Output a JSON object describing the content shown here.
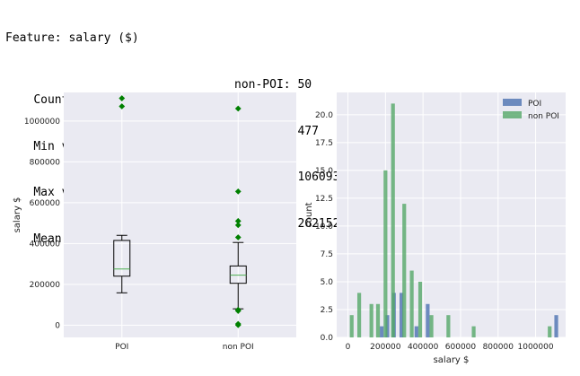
{
  "header": {
    "title": "Feature: salary ($)",
    "rows": [
      {
        "label": "Count of NaN - POI: 1",
        "other": "non-POI: 50"
      },
      {
        "label": "Min value    - POI: 158403",
        "other": "non-POI: 477"
      },
      {
        "label": "Max value    - POI: 1111258",
        "other": "non-POI: 1060932"
      },
      {
        "label": "Mean value   - POI: 383445",
        "other": "non-POI: 262152"
      }
    ]
  },
  "colors": {
    "poi": "#4c72b0",
    "non_poi": "#55a868",
    "plot_bg": "#eaeaf2",
    "grid": "#ffffff",
    "flier": "#008000",
    "median": "#4caf50"
  },
  "chart_data": [
    {
      "type": "box",
      "title": "",
      "xlabel": "",
      "ylabel": "salary $",
      "ylim": [
        -60000,
        1140000
      ],
      "yticks": [
        0,
        200000,
        400000,
        600000,
        800000,
        1000000
      ],
      "ytick_labels": [
        "0",
        "200000",
        "400000",
        "600000",
        "800000",
        "1000000"
      ],
      "categories": [
        "POI",
        "non POI"
      ],
      "boxes": [
        {
          "name": "POI",
          "whisker_low": 158403,
          "q1": 240000,
          "median": 275000,
          "q3": 415000,
          "whisker_high": 440000,
          "fliers": [
            1072000,
            1111258
          ]
        },
        {
          "name": "non POI",
          "whisker_low": 80000,
          "q1": 205000,
          "median": 245000,
          "q3": 290000,
          "whisker_high": 405000,
          "fliers": [
            477,
            6000,
            70000,
            75000,
            430000,
            490000,
            510000,
            655000,
            1060932
          ]
        }
      ],
      "grid": true
    },
    {
      "type": "bar",
      "title": "",
      "xlabel": "salary $",
      "ylabel": "count",
      "xlim": [
        -60000,
        1160000
      ],
      "ylim": [
        0,
        22
      ],
      "xticks": [
        0,
        200000,
        400000,
        600000,
        800000,
        1000000
      ],
      "xtick_labels": [
        "0",
        "200000",
        "400000",
        "600000",
        "800000",
        "1000000"
      ],
      "yticks": [
        0,
        2.5,
        5,
        7.5,
        10,
        12.5,
        15,
        17.5,
        20
      ],
      "ytick_labels": [
        "0.0",
        "2.5",
        "5.0",
        "7.5",
        "10.0",
        "12.5",
        "15.0",
        "17.5",
        "20.0"
      ],
      "legend_position": "top-right",
      "series": [
        {
          "name": "POI",
          "color_key": "poi",
          "bars": [
            [
              180000,
              1
            ],
            [
              210000,
              2
            ],
            [
              245000,
              4
            ],
            [
              285000,
              4
            ],
            [
              365000,
              1
            ],
            [
              425000,
              3
            ],
            [
              1110000,
              2
            ]
          ]
        },
        {
          "name": "non POI",
          "color_key": "non_poi",
          "bars": [
            [
              20000,
              2
            ],
            [
              60000,
              4
            ],
            [
              125000,
              3
            ],
            [
              160000,
              3
            ],
            [
              200000,
              15
            ],
            [
              240000,
              21
            ],
            [
              300000,
              12
            ],
            [
              340000,
              6
            ],
            [
              385000,
              5
            ],
            [
              445000,
              2
            ],
            [
              535000,
              2
            ],
            [
              670000,
              1
            ],
            [
              1075000,
              1
            ]
          ]
        }
      ],
      "grid": true
    }
  ]
}
